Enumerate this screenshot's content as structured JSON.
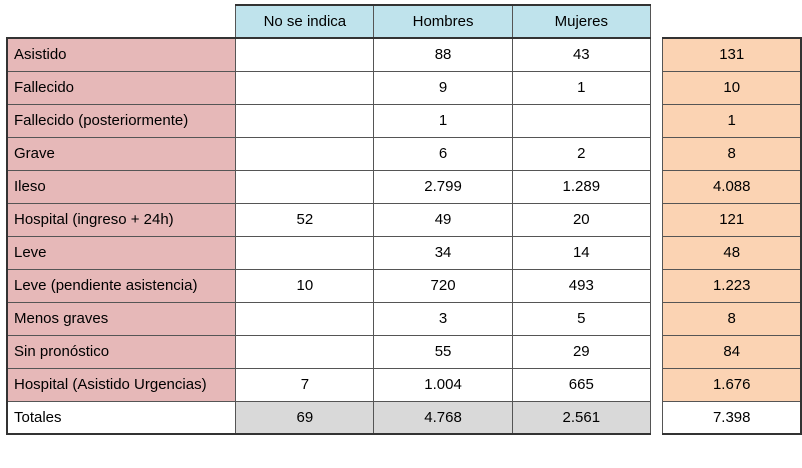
{
  "table": {
    "headers": [
      "No se indica",
      "Hombres",
      "Mujeres"
    ],
    "rows": [
      {
        "label": "Asistido",
        "no_indica": "",
        "hombres": "88",
        "mujeres": "43",
        "total": "131"
      },
      {
        "label": "Fallecido",
        "no_indica": "",
        "hombres": "9",
        "mujeres": "1",
        "total": "10"
      },
      {
        "label": "Fallecido (posteriormente)",
        "no_indica": "",
        "hombres": "1",
        "mujeres": "",
        "total": "1"
      },
      {
        "label": "Grave",
        "no_indica": "",
        "hombres": "6",
        "mujeres": "2",
        "total": "8"
      },
      {
        "label": "Ileso",
        "no_indica": "",
        "hombres": "2.799",
        "mujeres": "1.289",
        "total": "4.088"
      },
      {
        "label": "Hospital (ingreso + 24h)",
        "no_indica": "52",
        "hombres": "49",
        "mujeres": "20",
        "total": "121"
      },
      {
        "label": "Leve",
        "no_indica": "",
        "hombres": "34",
        "mujeres": "14",
        "total": "48"
      },
      {
        "label": "Leve (pendiente asistencia)",
        "no_indica": "10",
        "hombres": "720",
        "mujeres": "493",
        "total": "1.223"
      },
      {
        "label": "Menos graves",
        "no_indica": "",
        "hombres": "3",
        "mujeres": "5",
        "total": "8"
      },
      {
        "label": "Sin pronóstico",
        "no_indica": "",
        "hombres": "55",
        "mujeres": "29",
        "total": "84"
      },
      {
        "label": "Hospital (Asistido Urgencias)",
        "no_indica": "7",
        "hombres": "1.004",
        "mujeres": "665",
        "total": "1.676"
      }
    ],
    "totals": {
      "label": "Totales",
      "no_indica": "69",
      "hombres": "4.768",
      "mujeres": "2.561",
      "total": "7.398"
    }
  },
  "colors": {
    "header": "#bfe3ec",
    "label": "#e6b8b8",
    "total_col": "#fbd3b3",
    "totals_row": "#d9d9d9"
  }
}
